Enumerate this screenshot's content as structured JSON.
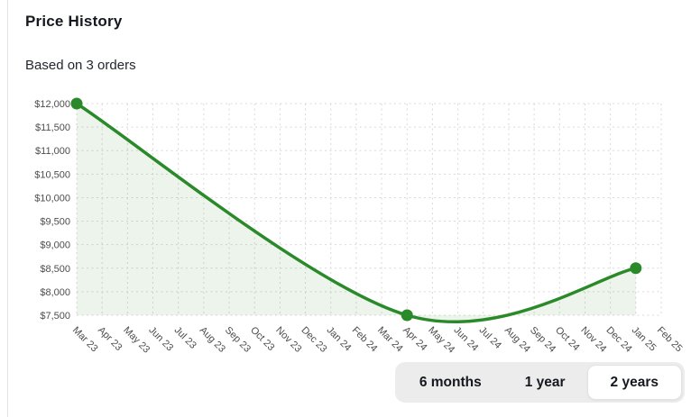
{
  "card": {
    "title": "Price History",
    "subtitle": "Based on 3 orders"
  },
  "time_range": {
    "options": [
      {
        "label": "6 months",
        "selected": false
      },
      {
        "label": "1 year",
        "selected": false
      },
      {
        "label": "2 years",
        "selected": true
      }
    ],
    "selected_bg": "#ffffff",
    "group_bg": "#ececec"
  },
  "chart_data": {
    "type": "area",
    "title": "Price History",
    "categories": [
      "Mar 23",
      "Apr 23",
      "May 23",
      "Jun 23",
      "Jul 23",
      "Aug 23",
      "Sep 23",
      "Oct 23",
      "Nov 23",
      "Dec 23",
      "Jan 24",
      "Feb 24",
      "Mar 24",
      "Apr 24",
      "May 24",
      "Jun 24",
      "Jul 24",
      "Aug 24",
      "Sep 24",
      "Oct 24",
      "Nov 24",
      "Dec 24",
      "Jan 25",
      "Feb 25"
    ],
    "points": [
      {
        "category": "Mar 23",
        "value": 12000
      },
      {
        "category": "Apr 24",
        "value": 7500
      },
      {
        "category": "Jan 25",
        "value": 8500
      }
    ],
    "ylim": [
      7500,
      12000
    ],
    "y_ticks": [
      {
        "value": 7500,
        "label": "$7,500"
      },
      {
        "value": 8000,
        "label": "$8,000"
      },
      {
        "value": 8500,
        "label": "$8,500"
      },
      {
        "value": 9000,
        "label": "$9,000"
      },
      {
        "value": 9500,
        "label": "$9,500"
      },
      {
        "value": 10000,
        "label": "$10,000"
      },
      {
        "value": 10500,
        "label": "$10,500"
      },
      {
        "value": 11000,
        "label": "$11,000"
      },
      {
        "value": 11500,
        "label": "$11,500"
      },
      {
        "value": 12000,
        "label": "$12,000"
      }
    ],
    "grid": "dotted",
    "legend": "none",
    "line_color": "#2a8a2a",
    "fill_color": "rgba(42,138,42,0.09)",
    "grid_color": "#d9d9d9",
    "axis_text_color": "#4d4d4d",
    "line_smoothing": "catmull-rom"
  }
}
